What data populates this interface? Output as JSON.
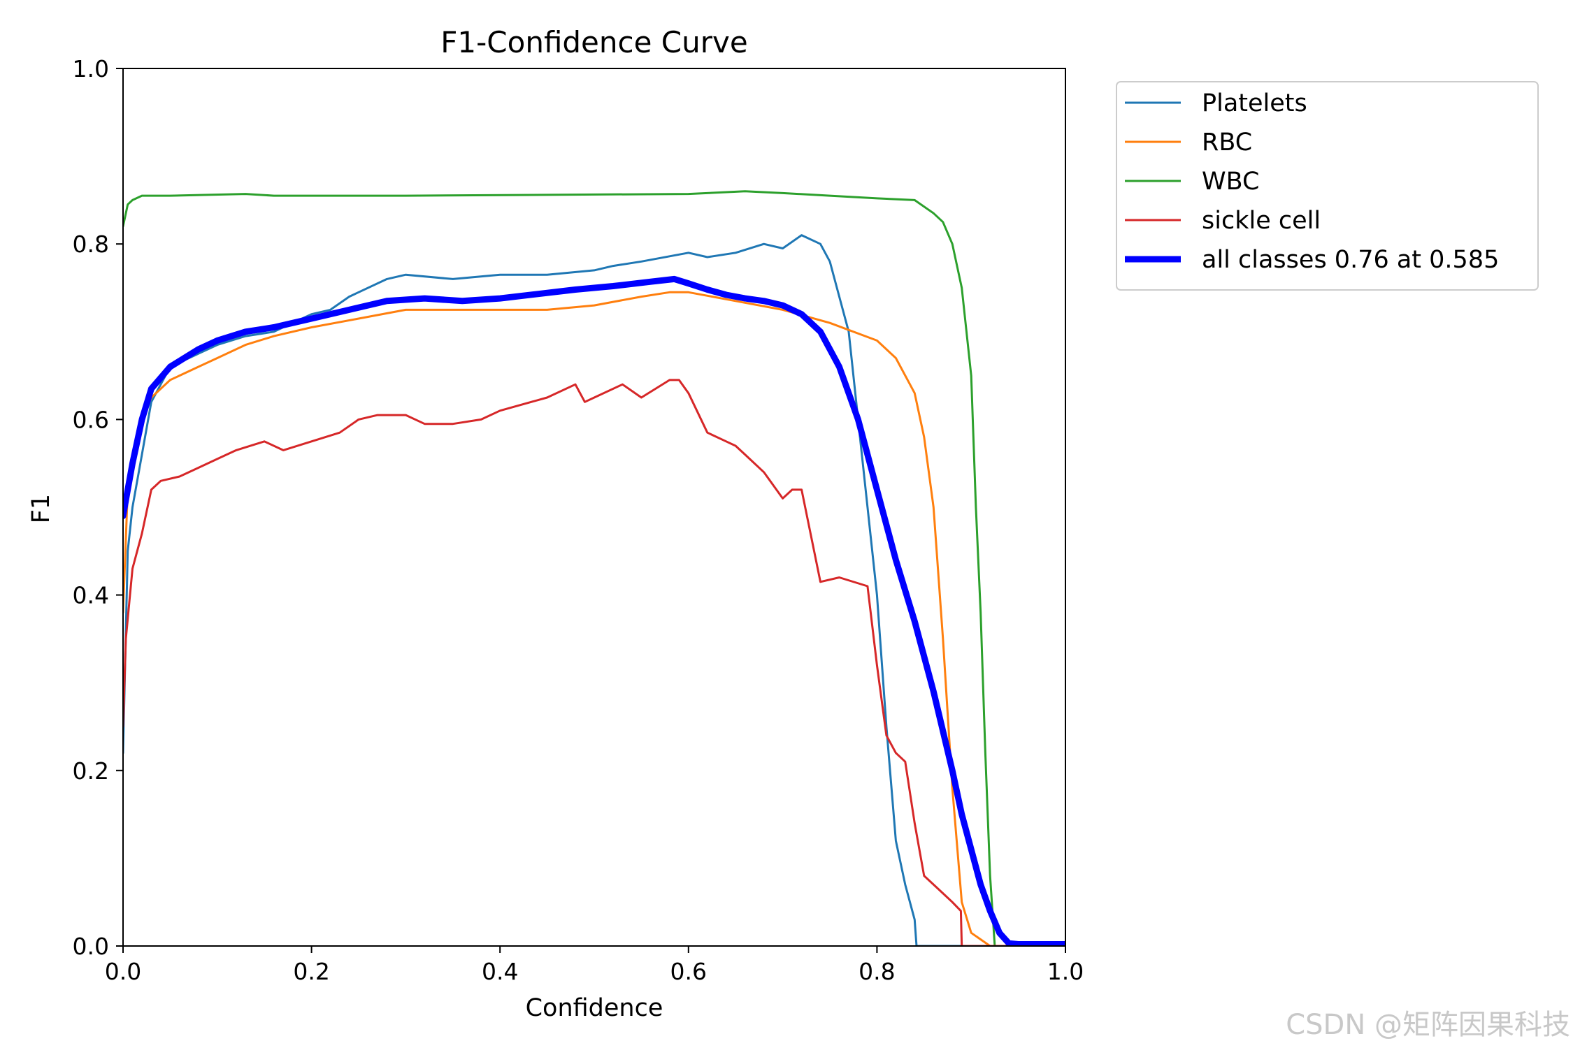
{
  "watermark": "CSDN @矩阵因果科技",
  "chart_data": {
    "type": "line",
    "title": "F1-Confidence Curve",
    "xlabel": "Confidence",
    "ylabel": "F1",
    "xlim": [
      0,
      1
    ],
    "ylim": [
      0,
      1
    ],
    "xticks": [
      "0.0",
      "0.2",
      "0.4",
      "0.6",
      "0.8",
      "1.0"
    ],
    "yticks": [
      "0.0",
      "0.2",
      "0.4",
      "0.6",
      "0.8",
      "1.0"
    ],
    "grid": false,
    "legend_position": "outside-top-right",
    "series": [
      {
        "name": "Platelets",
        "color": "#1f77b4",
        "width": 1.5,
        "x": [
          0.0,
          0.005,
          0.01,
          0.02,
          0.03,
          0.05,
          0.08,
          0.1,
          0.13,
          0.16,
          0.18,
          0.2,
          0.22,
          0.24,
          0.28,
          0.3,
          0.35,
          0.4,
          0.45,
          0.5,
          0.52,
          0.55,
          0.6,
          0.62,
          0.65,
          0.68,
          0.7,
          0.72,
          0.74,
          0.75,
          0.76,
          0.77,
          0.78,
          0.79,
          0.8,
          0.81,
          0.82,
          0.83,
          0.84,
          0.842,
          0.85,
          1.0
        ],
        "y": [
          0.22,
          0.45,
          0.5,
          0.56,
          0.62,
          0.66,
          0.675,
          0.685,
          0.695,
          0.7,
          0.71,
          0.72,
          0.725,
          0.74,
          0.76,
          0.765,
          0.76,
          0.765,
          0.765,
          0.77,
          0.775,
          0.78,
          0.79,
          0.785,
          0.79,
          0.8,
          0.795,
          0.81,
          0.8,
          0.78,
          0.74,
          0.7,
          0.6,
          0.5,
          0.4,
          0.25,
          0.12,
          0.07,
          0.03,
          0.0,
          0.0,
          0.0
        ]
      },
      {
        "name": "RBC",
        "color": "#ff7f0e",
        "width": 1.5,
        "x": [
          0.0,
          0.005,
          0.01,
          0.02,
          0.03,
          0.05,
          0.08,
          0.1,
          0.13,
          0.16,
          0.2,
          0.25,
          0.3,
          0.35,
          0.4,
          0.45,
          0.5,
          0.55,
          0.58,
          0.6,
          0.65,
          0.7,
          0.75,
          0.8,
          0.82,
          0.84,
          0.85,
          0.86,
          0.87,
          0.88,
          0.89,
          0.9,
          0.92,
          1.0
        ],
        "y": [
          0.38,
          0.52,
          0.56,
          0.6,
          0.625,
          0.645,
          0.66,
          0.67,
          0.685,
          0.695,
          0.705,
          0.715,
          0.725,
          0.725,
          0.725,
          0.725,
          0.73,
          0.74,
          0.745,
          0.745,
          0.735,
          0.725,
          0.71,
          0.69,
          0.67,
          0.63,
          0.58,
          0.5,
          0.35,
          0.18,
          0.05,
          0.015,
          0.0,
          0.0
        ]
      },
      {
        "name": "WBC",
        "color": "#2ca02c",
        "width": 1.5,
        "x": [
          0.0,
          0.005,
          0.01,
          0.02,
          0.05,
          0.13,
          0.16,
          0.3,
          0.6,
          0.66,
          0.7,
          0.75,
          0.8,
          0.84,
          0.86,
          0.87,
          0.88,
          0.89,
          0.9,
          0.905,
          0.91,
          0.915,
          0.92,
          0.925,
          1.0
        ],
        "y": [
          0.82,
          0.845,
          0.85,
          0.855,
          0.855,
          0.857,
          0.855,
          0.855,
          0.857,
          0.86,
          0.858,
          0.855,
          0.852,
          0.85,
          0.835,
          0.825,
          0.8,
          0.75,
          0.65,
          0.5,
          0.38,
          0.22,
          0.08,
          0.0,
          0.0
        ]
      },
      {
        "name": "sickle cell",
        "color": "#d62728",
        "width": 1.5,
        "x": [
          0.0,
          0.003,
          0.01,
          0.02,
          0.03,
          0.04,
          0.06,
          0.08,
          0.1,
          0.12,
          0.15,
          0.17,
          0.2,
          0.23,
          0.25,
          0.27,
          0.3,
          0.32,
          0.35,
          0.38,
          0.4,
          0.45,
          0.48,
          0.49,
          0.5,
          0.53,
          0.55,
          0.58,
          0.59,
          0.6,
          0.62,
          0.64,
          0.65,
          0.66,
          0.68,
          0.7,
          0.71,
          0.72,
          0.74,
          0.76,
          0.79,
          0.8,
          0.81,
          0.82,
          0.83,
          0.84,
          0.85,
          0.87,
          0.88,
          0.889,
          0.89,
          1.0
        ],
        "y": [
          0.25,
          0.35,
          0.43,
          0.47,
          0.52,
          0.53,
          0.535,
          0.545,
          0.555,
          0.565,
          0.575,
          0.565,
          0.575,
          0.585,
          0.6,
          0.605,
          0.605,
          0.595,
          0.595,
          0.6,
          0.61,
          0.625,
          0.64,
          0.62,
          0.625,
          0.64,
          0.625,
          0.645,
          0.645,
          0.63,
          0.585,
          0.575,
          0.57,
          0.56,
          0.54,
          0.51,
          0.52,
          0.52,
          0.415,
          0.42,
          0.41,
          0.32,
          0.24,
          0.22,
          0.21,
          0.14,
          0.08,
          0.06,
          0.05,
          0.04,
          0.0,
          0.0
        ]
      },
      {
        "name": "all classes 0.76 at 0.585",
        "color": "#0000ff",
        "width": 4.5,
        "x": [
          0.0,
          0.005,
          0.01,
          0.02,
          0.03,
          0.05,
          0.08,
          0.1,
          0.13,
          0.16,
          0.2,
          0.24,
          0.28,
          0.32,
          0.36,
          0.4,
          0.44,
          0.48,
          0.52,
          0.56,
          0.585,
          0.6,
          0.62,
          0.64,
          0.66,
          0.68,
          0.7,
          0.72,
          0.74,
          0.76,
          0.78,
          0.8,
          0.82,
          0.84,
          0.86,
          0.88,
          0.89,
          0.9,
          0.91,
          0.92,
          0.93,
          0.94,
          0.95,
          1.0
        ],
        "y": [
          0.49,
          0.52,
          0.55,
          0.6,
          0.635,
          0.66,
          0.68,
          0.69,
          0.7,
          0.705,
          0.715,
          0.725,
          0.735,
          0.738,
          0.735,
          0.738,
          0.743,
          0.748,
          0.752,
          0.757,
          0.76,
          0.755,
          0.748,
          0.742,
          0.738,
          0.735,
          0.73,
          0.72,
          0.7,
          0.66,
          0.6,
          0.52,
          0.44,
          0.37,
          0.29,
          0.2,
          0.15,
          0.11,
          0.07,
          0.04,
          0.015,
          0.003,
          0.002,
          0.002
        ]
      }
    ]
  }
}
